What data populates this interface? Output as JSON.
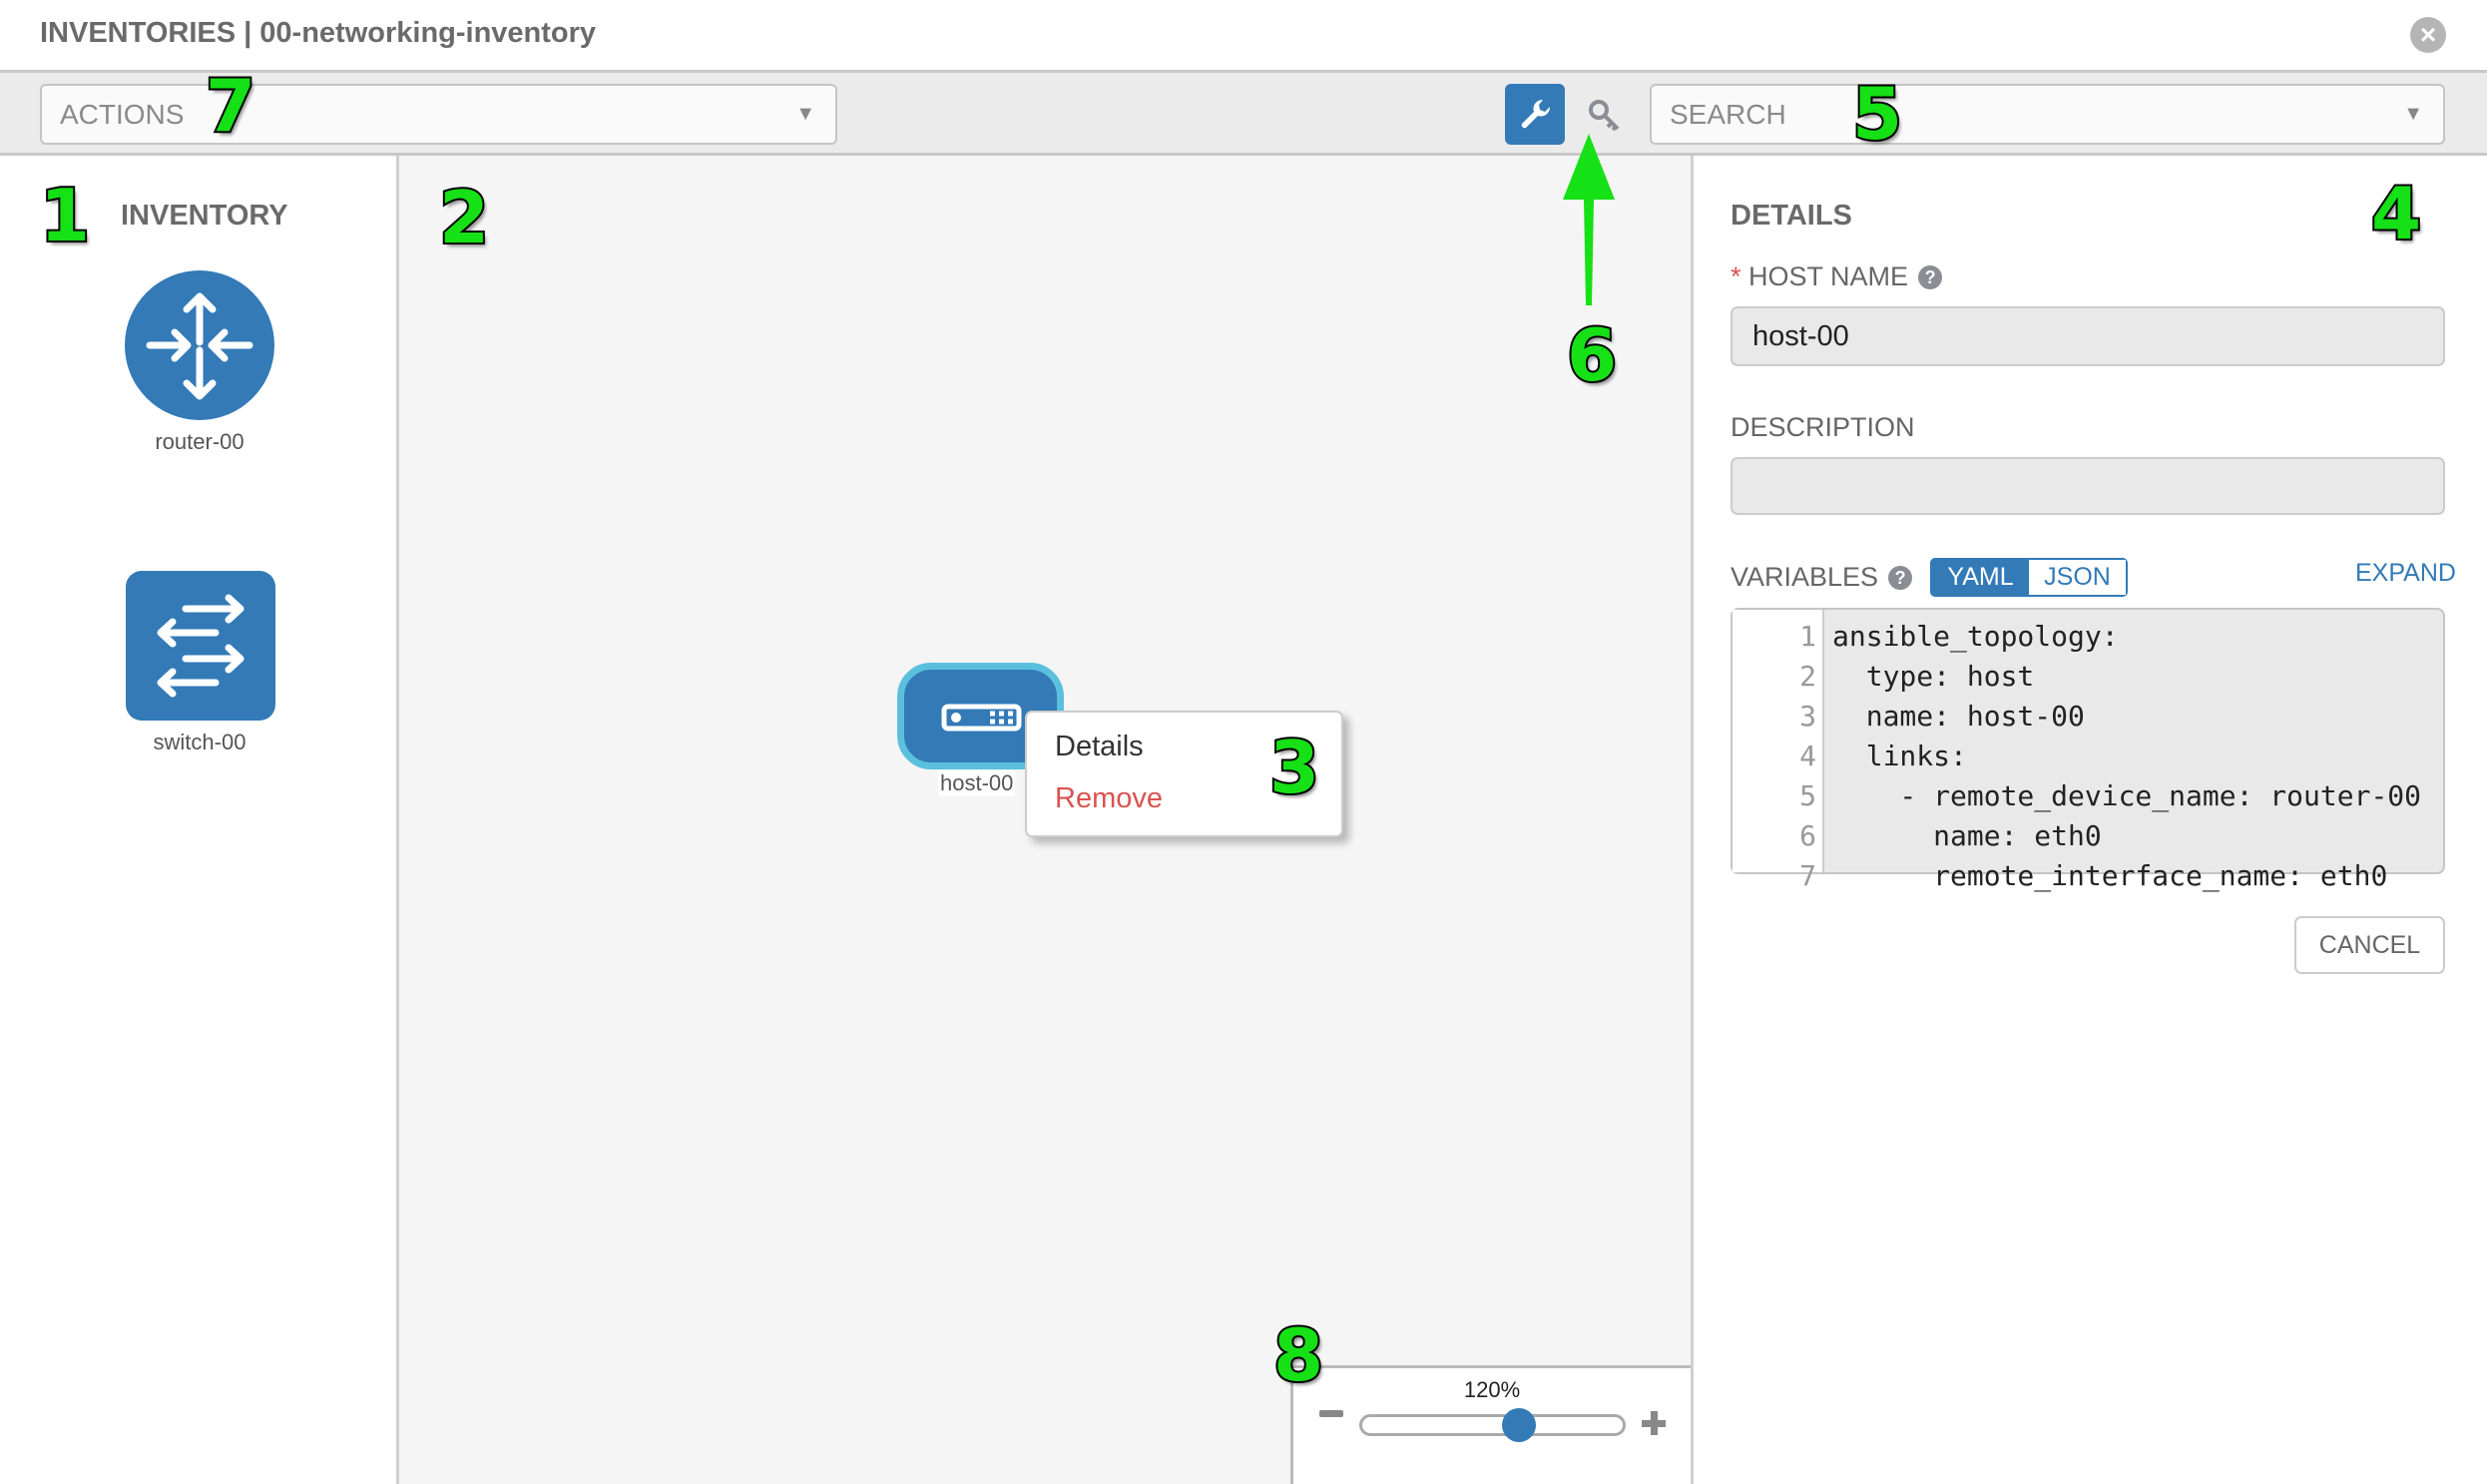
{
  "header": {
    "title": "INVENTORIES | 00-networking-inventory",
    "close_icon": "close-circle-icon"
  },
  "toolbar": {
    "actions_placeholder": "ACTIONS",
    "search_placeholder": "SEARCH",
    "mode_buttons": [
      {
        "icon": "wrench-icon",
        "active": true
      },
      {
        "icon": "key-icon",
        "active": false
      }
    ]
  },
  "inventory": {
    "title": "INVENTORY",
    "items": [
      {
        "label": "router-00",
        "icon": "router-icon"
      },
      {
        "label": "switch-00",
        "icon": "switch-icon"
      }
    ]
  },
  "canvas": {
    "node": {
      "label": "host-00",
      "icon": "host-icon"
    },
    "context_menu": {
      "details": "Details",
      "remove": "Remove"
    },
    "zoom": {
      "label": "120%",
      "slider_fraction": 0.6
    }
  },
  "details": {
    "title": "DETAILS",
    "host_name_label": "HOST NAME",
    "required_marker": "*",
    "host_name_value": "host-00",
    "description_label": "DESCRIPTION",
    "description_value": "",
    "variables_label": "VARIABLES",
    "yaml": "YAML",
    "json": "JSON",
    "expand": "EXPAND",
    "code_lines": [
      {
        "n": "1",
        "text": "ansible_topology:"
      },
      {
        "n": "2",
        "text": "  type: host"
      },
      {
        "n": "3",
        "text": "  name: host-00"
      },
      {
        "n": "4",
        "text": "  links:"
      },
      {
        "n": "5",
        "text": "    - remote_device_name: router-00"
      },
      {
        "n": "6",
        "text": "      name: eth0"
      },
      {
        "n": "7",
        "text": "      remote_interface_name: eth0"
      }
    ],
    "cancel": "CANCEL"
  },
  "annotations": [
    "1",
    "2",
    "3",
    "4",
    "5",
    "6",
    "7",
    "8"
  ],
  "colors": {
    "accent": "#337ab7",
    "node_border": "#5bc0de",
    "danger": "#d9534f",
    "annotation": "#16e016"
  }
}
